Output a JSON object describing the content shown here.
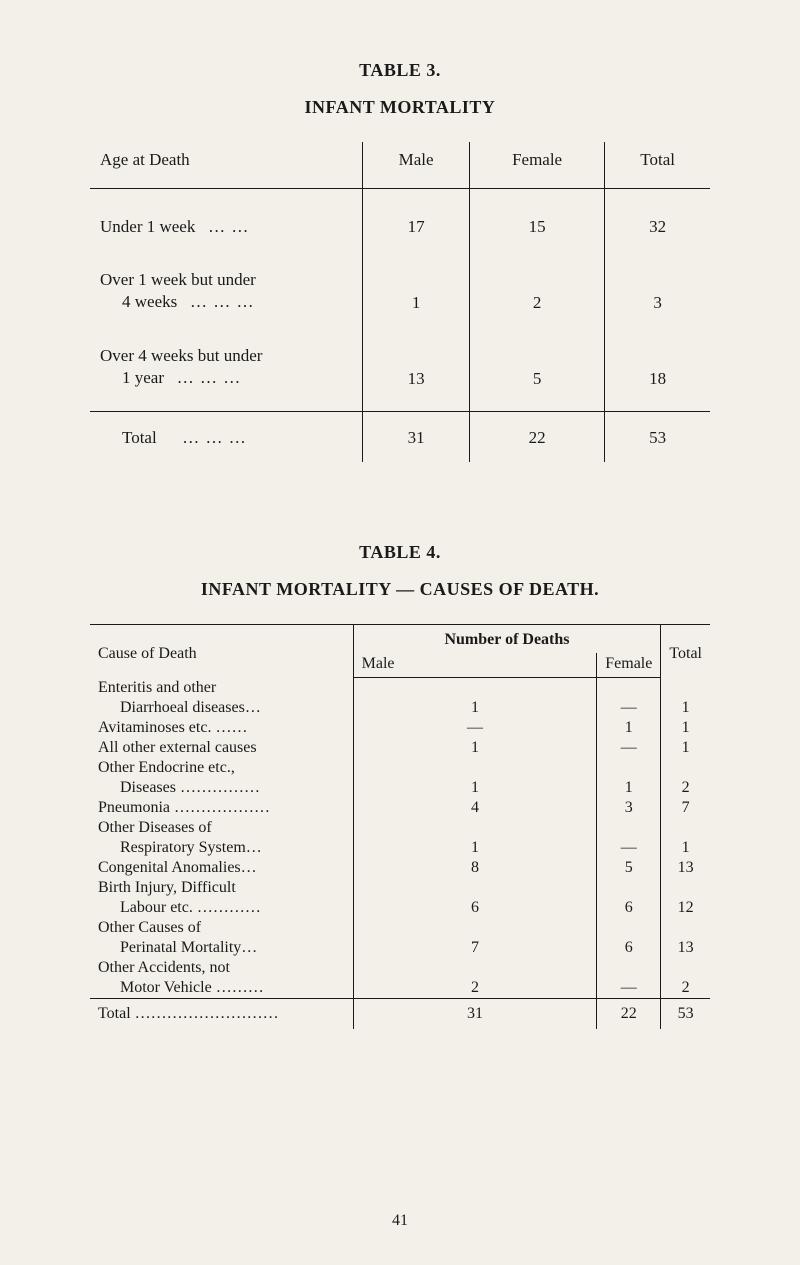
{
  "page_number": "41",
  "table3": {
    "number": "TABLE 3.",
    "title": "INFANT MORTALITY",
    "headers": [
      "Age at Death",
      "Male",
      "Female",
      "Total"
    ],
    "rows": [
      {
        "label": "Under 1 week",
        "dots": "… …",
        "male": "17",
        "female": "15",
        "total": "32"
      },
      {
        "label": "Over 1 week but under",
        "label2": "4 weeks",
        "dots": "… … …",
        "male": "1",
        "female": "2",
        "total": "3"
      },
      {
        "label": "Over 4 weeks but under",
        "label2": "1 year",
        "dots": "… … …",
        "male": "13",
        "female": "5",
        "total": "18"
      }
    ],
    "total": {
      "label": "Total",
      "dots": "… … …",
      "male": "31",
      "female": "22",
      "total": "53"
    }
  },
  "table4": {
    "number": "TABLE 4.",
    "title": "INFANT MORTALITY — CAUSES OF DEATH.",
    "header_cause": "Cause of Death",
    "header_span": "Number of Deaths",
    "header_male": "Male",
    "header_female": "Female",
    "header_total": "Total",
    "rows": [
      {
        "label": "Enteritis and other",
        "male": "",
        "female": "",
        "total": ""
      },
      {
        "label_indent": "Diarrhoeal diseases…",
        "male": "1",
        "female": "—",
        "total": "1"
      },
      {
        "label": "Avitaminoses etc. ……",
        "male": "—",
        "female": "1",
        "total": "1"
      },
      {
        "label": "All other external causes",
        "male": "1",
        "female": "—",
        "total": "1"
      },
      {
        "label": "Other Endocrine etc.,",
        "male": "",
        "female": "",
        "total": ""
      },
      {
        "label_indent": "Diseases  ……………",
        "male": "1",
        "female": "1",
        "total": "2"
      },
      {
        "label": "Pneumonia ………………",
        "male": "4",
        "female": "3",
        "total": "7"
      },
      {
        "label": "Other Diseases of",
        "male": "",
        "female": "",
        "total": ""
      },
      {
        "label_indent": "Respiratory System…",
        "male": "1",
        "female": "—",
        "total": "1"
      },
      {
        "label": "Congenital Anomalies…",
        "male": "8",
        "female": "5",
        "total": "13"
      },
      {
        "label": "Birth Injury, Difficult",
        "male": "",
        "female": "",
        "total": ""
      },
      {
        "label_indent": "Labour etc. …………",
        "male": "6",
        "female": "6",
        "total": "12"
      },
      {
        "label": "Other Causes of",
        "male": "",
        "female": "",
        "total": ""
      },
      {
        "label_indent": "Perinatal Mortality…",
        "male": "7",
        "female": "6",
        "total": "13"
      },
      {
        "label": "Other Accidents, not",
        "male": "",
        "female": "",
        "total": ""
      },
      {
        "label_indent": "Motor Vehicle ………",
        "male": "2",
        "female": "—",
        "total": "2"
      }
    ],
    "total": {
      "label": "Total ………………………",
      "male": "31",
      "female": "22",
      "total": "53"
    }
  }
}
